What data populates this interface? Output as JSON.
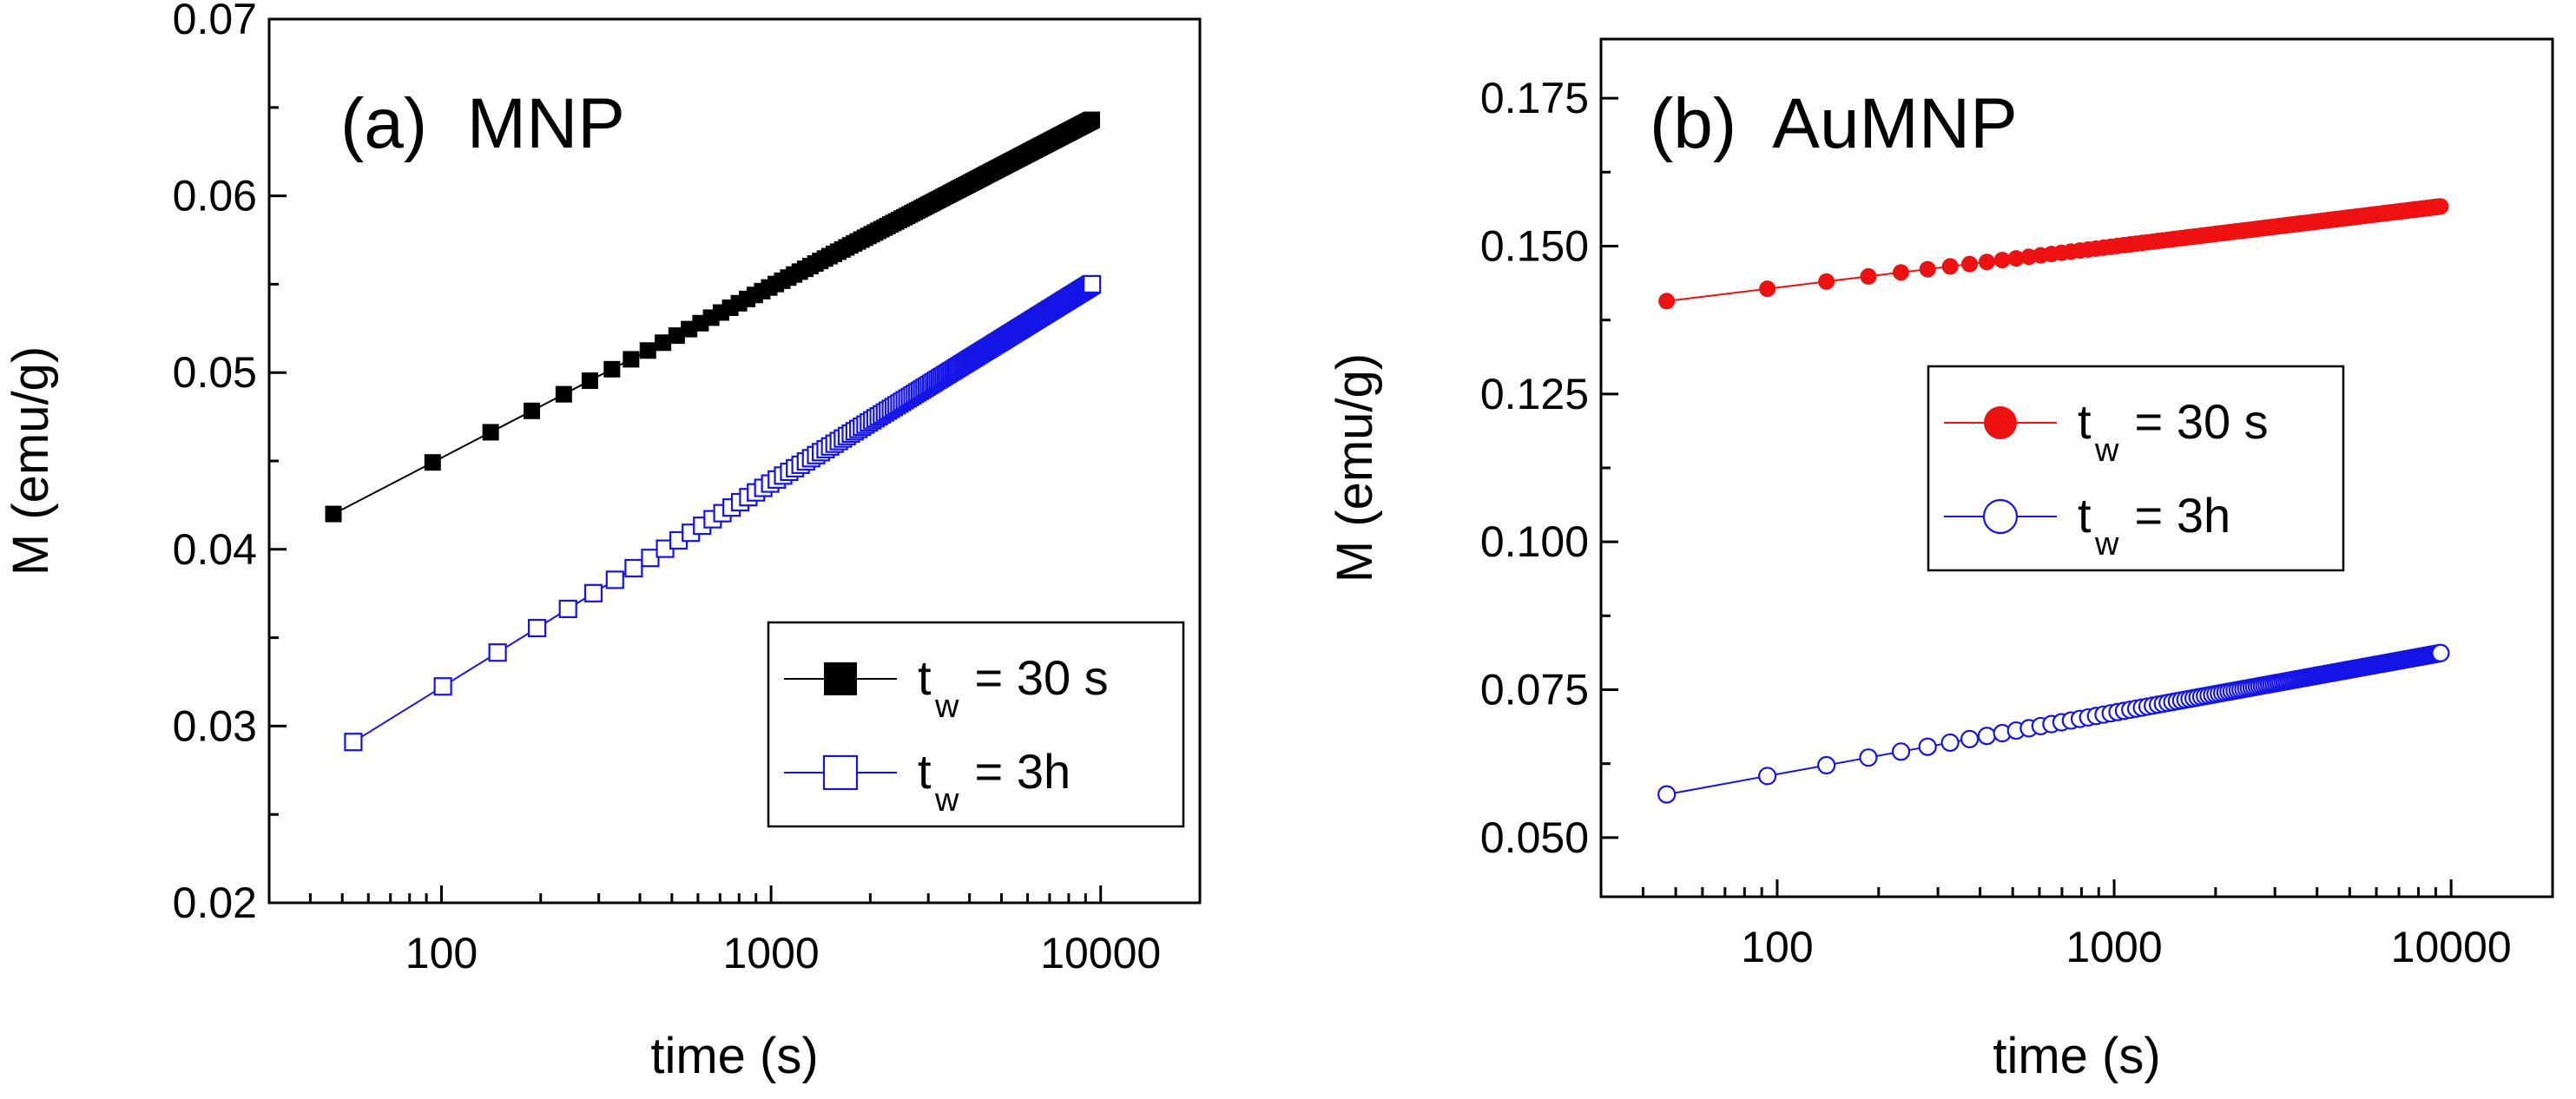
{
  "chart_data": [
    {
      "type": "scatter",
      "title": "(a)  MNP",
      "xlabel": "time (s)",
      "ylabel": "M (emu/g)",
      "xscale": "log",
      "xlim": [
        30,
        20000
      ],
      "ylim": [
        0.02,
        0.07
      ],
      "xticks": [
        100,
        1000,
        10000
      ],
      "xtick_labels": [
        "100",
        "1000",
        "10000"
      ],
      "yticks": [
        0.02,
        0.03,
        0.04,
        0.05,
        0.06,
        0.07
      ],
      "ytick_labels": [
        "0.02",
        "0.03",
        "0.04",
        "0.05",
        "0.06",
        "0.07"
      ],
      "legend_position": "bottom-right",
      "series": [
        {
          "name": "t_w = 30 s",
          "legend_main": "t",
          "legend_sub": "w",
          "legend_rest": " = 30 s",
          "marker": "square-filled",
          "color": "#000000",
          "x0": 47,
          "dx": 47,
          "count": 200,
          "y_start": 0.042,
          "y_end": 0.0643
        },
        {
          "name": "t_w = 3h",
          "legend_main": "t",
          "legend_sub": "w",
          "legend_rest": " = 3h",
          "marker": "square-open",
          "color": "#1414e6",
          "x0": 54,
          "dx": 47,
          "count": 200,
          "y_start": 0.0291,
          "y_end": 0.055
        }
      ]
    },
    {
      "type": "scatter",
      "title": "(b)  AuMNP",
      "xlabel": "time (s)",
      "ylabel": "M (emu/g)",
      "xscale": "log",
      "xlim": [
        30,
        20000
      ],
      "ylim": [
        0.04,
        0.185
      ],
      "xticks": [
        100,
        1000,
        10000
      ],
      "xtick_labels": [
        "100",
        "1000",
        "10000"
      ],
      "yticks": [
        0.05,
        0.075,
        0.1,
        0.125,
        0.15,
        0.175
      ],
      "ytick_labels": [
        "0.050",
        "0.075",
        "0.100",
        "0.125",
        "0.150",
        "0.175"
      ],
      "legend_position": "center-right",
      "series": [
        {
          "name": "t_w = 30 s",
          "legend_main": "t",
          "legend_sub": "w",
          "legend_rest": " = 30 s",
          "marker": "circle-filled",
          "color": "#ee1111",
          "x0": 47,
          "dx": 46.5,
          "count": 200,
          "y_start": 0.1407,
          "y_end": 0.1567
        },
        {
          "name": "t_w = 3h",
          "legend_main": "t",
          "legend_sub": "w",
          "legend_rest": " = 3h",
          "marker": "circle-open",
          "color": "#1414e6",
          "x0": 47,
          "dx": 46.5,
          "count": 200,
          "y_start": 0.0573,
          "y_end": 0.0812
        }
      ]
    }
  ]
}
